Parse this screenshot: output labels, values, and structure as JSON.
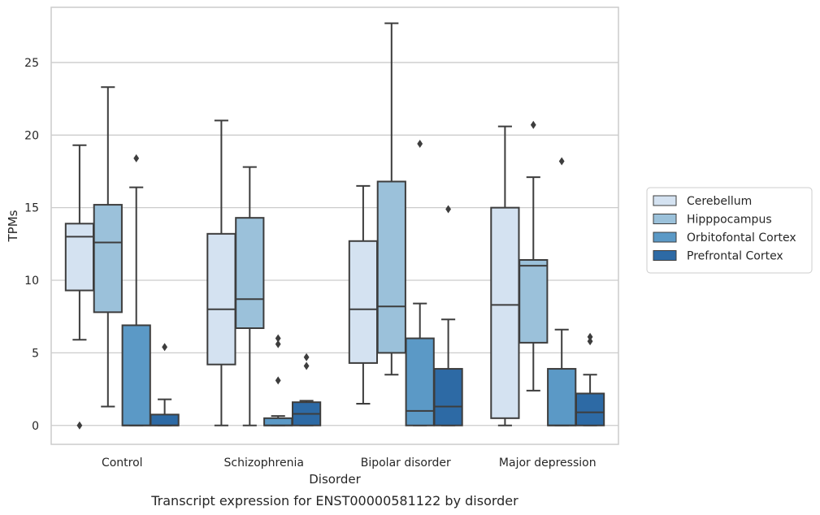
{
  "chart_data": {
    "type": "box",
    "caption": "Transcript expression for ENST00000581122 by disorder",
    "xlabel": "Disorder",
    "ylabel": "TPMs",
    "ylim": [
      -1.3,
      28.8
    ],
    "yticks": [
      0,
      5,
      10,
      15,
      20,
      25
    ],
    "grid": "horizontal",
    "legend_position": "right",
    "categories": [
      "Control",
      "Schizophrenia",
      "Bipolar disorder",
      "Major depression"
    ],
    "series": [
      {
        "name": "Cerebellum",
        "color": "#d4e2f1",
        "boxes": [
          {
            "whisker_low": 5.9,
            "q1": 9.3,
            "median": 13.0,
            "q3": 13.9,
            "whisker_high": 19.3,
            "outliers": [
              0.0
            ]
          },
          {
            "whisker_low": 0.0,
            "q1": 4.2,
            "median": 8.0,
            "q3": 13.2,
            "whisker_high": 21.0,
            "outliers": []
          },
          {
            "whisker_low": 1.5,
            "q1": 4.3,
            "median": 8.0,
            "q3": 12.7,
            "whisker_high": 16.5,
            "outliers": []
          },
          {
            "whisker_low": 0.0,
            "q1": 0.5,
            "median": 8.3,
            "q3": 15.0,
            "whisker_high": 20.6,
            "outliers": []
          }
        ]
      },
      {
        "name": "Hipppocampus",
        "color": "#9bc1da",
        "boxes": [
          {
            "whisker_low": 1.3,
            "q1": 7.8,
            "median": 12.6,
            "q3": 15.2,
            "whisker_high": 23.3,
            "outliers": []
          },
          {
            "whisker_low": 0.0,
            "q1": 6.7,
            "median": 8.7,
            "q3": 14.3,
            "whisker_high": 17.8,
            "outliers": []
          },
          {
            "whisker_low": 3.5,
            "q1": 5.0,
            "median": 8.2,
            "q3": 16.8,
            "whisker_high": 27.7,
            "outliers": []
          },
          {
            "whisker_low": 2.4,
            "q1": 5.7,
            "median": 11.0,
            "q3": 11.4,
            "whisker_high": 17.1,
            "outliers": [
              20.7
            ]
          }
        ]
      },
      {
        "name": "Orbitofontal Cortex",
        "color": "#5b99c6",
        "boxes": [
          {
            "whisker_low": 0.0,
            "q1": 0.0,
            "median": 0.0,
            "q3": 6.9,
            "whisker_high": 16.4,
            "outliers": [
              18.4
            ]
          },
          {
            "whisker_low": 0.0,
            "q1": 0.0,
            "median": 0.0,
            "q3": 0.5,
            "whisker_high": 0.65,
            "outliers": [
              6.0,
              5.6,
              3.1
            ]
          },
          {
            "whisker_low": 0.0,
            "q1": 0.0,
            "median": 1.0,
            "q3": 6.0,
            "whisker_high": 8.4,
            "outliers": [
              19.4
            ]
          },
          {
            "whisker_low": 0.0,
            "q1": 0.0,
            "median": 0.0,
            "q3": 3.9,
            "whisker_high": 6.6,
            "outliers": [
              18.2
            ]
          }
        ]
      },
      {
        "name": "Prefrontal Cortex",
        "color": "#2d6aa5",
        "boxes": [
          {
            "whisker_low": 0.0,
            "q1": 0.0,
            "median": 0.0,
            "q3": 0.75,
            "whisker_high": 1.8,
            "outliers": [
              5.4
            ]
          },
          {
            "whisker_low": 0.0,
            "q1": 0.0,
            "median": 0.8,
            "q3": 1.6,
            "whisker_high": 1.7,
            "outliers": [
              4.7,
              4.1
            ]
          },
          {
            "whisker_low": 0.0,
            "q1": 0.0,
            "median": 1.3,
            "q3": 3.9,
            "whisker_high": 7.3,
            "outliers": [
              14.9
            ]
          },
          {
            "whisker_low": 0.0,
            "q1": 0.0,
            "median": 0.9,
            "q3": 2.2,
            "whisker_high": 3.5,
            "outliers": [
              6.1,
              5.8
            ]
          }
        ]
      }
    ]
  }
}
